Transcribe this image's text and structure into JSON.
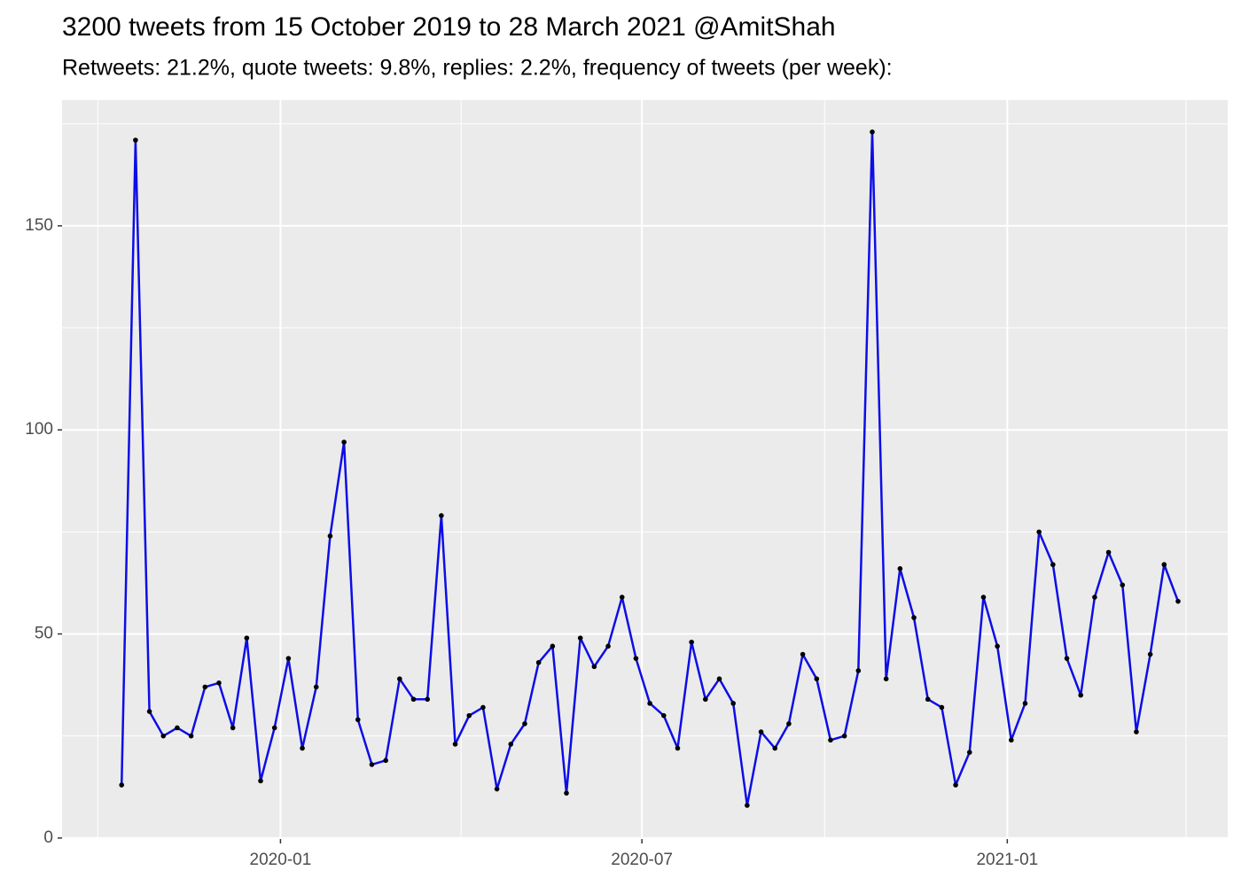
{
  "chart_data": {
    "type": "line",
    "title": "3200 tweets from 15 October 2019 to 28 March 2021 @AmitShah",
    "subtitle": "Retweets: 21.2%, quote tweets: 9.8%, replies: 2.2%, frequency of tweets (per week):",
    "x": [
      "2019-10-13",
      "2019-10-20",
      "2019-10-27",
      "2019-11-03",
      "2019-11-10",
      "2019-11-17",
      "2019-11-24",
      "2019-12-01",
      "2019-12-08",
      "2019-12-15",
      "2019-12-22",
      "2019-12-29",
      "2020-01-05",
      "2020-01-12",
      "2020-01-19",
      "2020-01-26",
      "2020-02-02",
      "2020-02-09",
      "2020-02-16",
      "2020-02-23",
      "2020-03-01",
      "2020-03-08",
      "2020-03-15",
      "2020-03-22",
      "2020-03-29",
      "2020-04-05",
      "2020-04-12",
      "2020-04-19",
      "2020-04-26",
      "2020-05-03",
      "2020-05-10",
      "2020-05-17",
      "2020-05-24",
      "2020-05-31",
      "2020-06-07",
      "2020-06-14",
      "2020-06-21",
      "2020-06-28",
      "2020-07-05",
      "2020-07-12",
      "2020-07-19",
      "2020-07-26",
      "2020-08-02",
      "2020-08-09",
      "2020-08-16",
      "2020-08-23",
      "2020-08-30",
      "2020-09-06",
      "2020-09-13",
      "2020-09-20",
      "2020-09-27",
      "2020-10-04",
      "2020-10-11",
      "2020-10-18",
      "2020-10-25",
      "2020-11-01",
      "2020-11-08",
      "2020-11-15",
      "2020-11-22",
      "2020-11-29",
      "2020-12-06",
      "2020-12-13",
      "2020-12-20",
      "2020-12-27",
      "2021-01-03",
      "2021-01-10",
      "2021-01-17",
      "2021-01-24",
      "2021-01-31",
      "2021-02-07",
      "2021-02-14",
      "2021-02-21",
      "2021-02-28",
      "2021-03-07",
      "2021-03-14",
      "2021-03-21",
      "2021-03-28"
    ],
    "values": [
      13,
      171,
      31,
      25,
      27,
      25,
      37,
      38,
      27,
      49,
      14,
      27,
      44,
      22,
      37,
      74,
      97,
      29,
      18,
      19,
      39,
      34,
      34,
      79,
      23,
      30,
      32,
      12,
      23,
      28,
      43,
      47,
      11,
      49,
      42,
      47,
      59,
      44,
      33,
      30,
      22,
      48,
      34,
      39,
      33,
      8,
      26,
      22,
      28,
      45,
      39,
      24,
      25,
      41,
      173,
      39,
      66,
      54,
      34,
      32,
      13,
      21,
      59,
      47,
      24,
      33,
      75,
      67,
      44,
      35,
      59,
      70,
      62,
      26,
      45,
      67,
      58
    ],
    "color": "#0d0de6",
    "point_color": "#000000",
    "xlim": [
      "2019-09-13",
      "2021-04-22"
    ],
    "xticks": [
      {
        "value": "2020-01-01",
        "label": "2020-01"
      },
      {
        "value": "2020-07-01",
        "label": "2020-07"
      },
      {
        "value": "2021-01-01",
        "label": "2021-01"
      }
    ],
    "xminor": [
      "2019-10-01",
      "2020-04-01",
      "2020-10-01",
      "2021-04-01"
    ],
    "ylim": [
      -0.25,
      180.8
    ],
    "yticks": [
      0,
      50,
      100,
      150
    ],
    "yminor": [
      25,
      75,
      125,
      175
    ],
    "grid": true
  }
}
